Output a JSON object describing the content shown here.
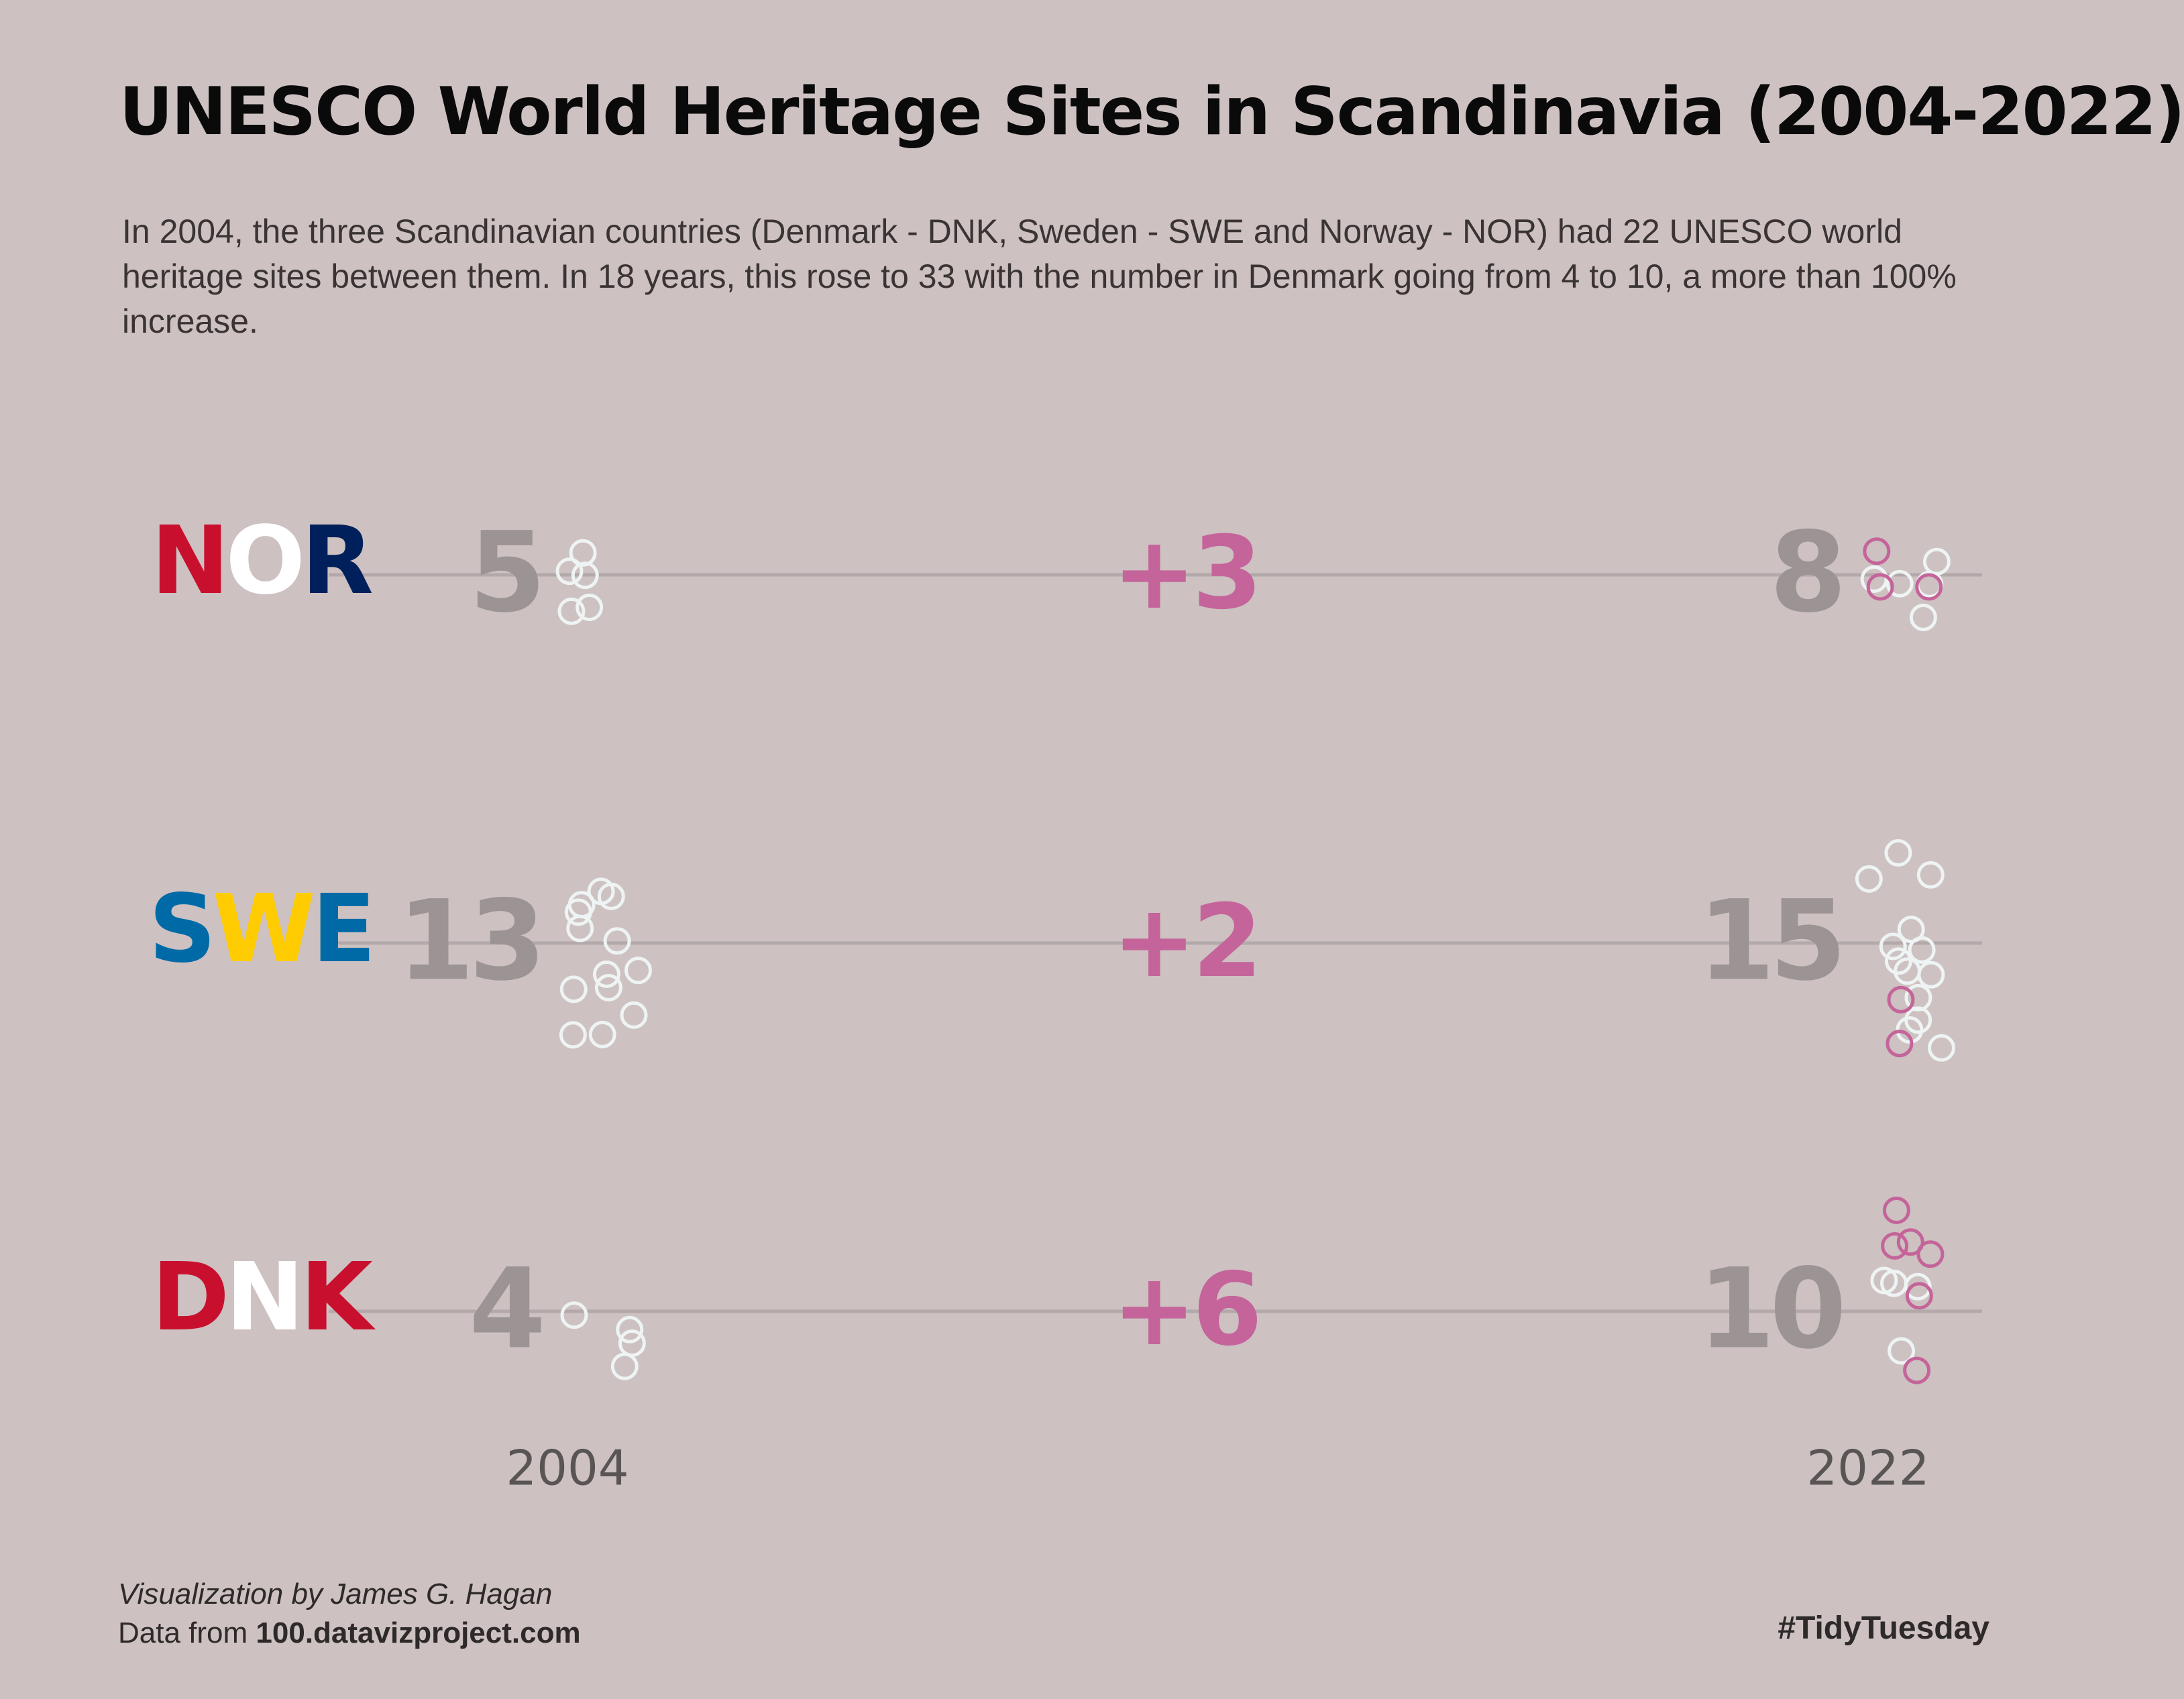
{
  "chart_data": {
    "type": "dot-swarm",
    "title": "UNESCO World Heritage Sites in Scandinavia (2004-2022)",
    "subtitle": "In 2004, the three Scandinavian countries (Denmark - DNK, Sweden - SWE and Norway - NOR) had 22 UNESCO world heritage sites between them. In 18 years, this rose to 33 with the number in Denmark going from 4 to 10, a more than 100% increase.",
    "categories": [
      "NOR",
      "SWE",
      "DNK"
    ],
    "label_colors": [
      [
        "#c8102e",
        "#ffffff",
        "#00205b"
      ],
      [
        "#006aa7",
        "#fecc00",
        "#006aa7"
      ],
      [
        "#c8102e",
        "#ffffff",
        "#c8102e"
      ]
    ],
    "series": [
      {
        "name": "2004",
        "color": "#eef3f3",
        "values": [
          5,
          13,
          4
        ]
      },
      {
        "name": "2022",
        "color": "#eef3f3",
        "values": [
          8,
          15,
          10
        ]
      }
    ],
    "change": {
      "color": "#c4649a",
      "values": [
        3,
        2,
        6
      ],
      "value_labels": [
        "+3",
        "+2",
        "+6"
      ]
    },
    "credit": "Visualization by James G. Hagan",
    "data_prefix": "Data from",
    "data_source": "100.datavizproject.com",
    "tag": "#TidyTuesday"
  }
}
